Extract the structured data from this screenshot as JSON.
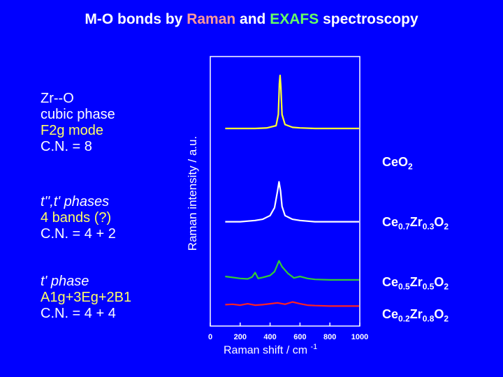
{
  "title": {
    "prefix": "M-O bonds by ",
    "raman": "Raman",
    "middle": " and ",
    "exafs": "EXAFS",
    "suffix": " spectroscopy"
  },
  "blocks": [
    {
      "line1": "Zr--O",
      "line2": "cubic phase",
      "line3": "F2g mode",
      "line4": "C.N. = 8"
    },
    {
      "line1": "t'',t' phases",
      "line2": "4 bands (?)",
      "line3": "C.N. = 4 + 2"
    },
    {
      "line1": "t' phase",
      "line2": "A1g+3Eg+2B1",
      "line3": "C.N. = 4 + 4"
    }
  ],
  "labels": {
    "s1": {
      "base": "Ce",
      "o_base": "O",
      "o_sub": "2"
    },
    "s2": {
      "a": "Ce",
      "a_sub": "0.7",
      "b": "Zr",
      "b_sub": "0.3",
      "c": "O",
      "c_sub": "2"
    },
    "s3": {
      "a": "Ce",
      "a_sub": "0.5",
      "b": "Zr",
      "b_sub": "0.5",
      "c": "O",
      "c_sub": "2"
    },
    "s4": {
      "a": "Ce",
      "a_sub": "0.2",
      "b": "Zr",
      "b_sub": "0.8",
      "c": "O",
      "c_sub": "2"
    }
  },
  "chart_data": {
    "type": "line",
    "xlabel_base": "Raman shift / cm",
    "xlabel_sup": "-1",
    "ylabel": "Raman intensity / a.u.",
    "xlim": [
      0,
      1000
    ],
    "xticks": [
      0,
      200,
      400,
      600,
      800,
      1000
    ],
    "xtick_labels": [
      "0",
      "200",
      "400",
      "600",
      "800",
      "1000"
    ],
    "grid": false,
    "colors": {
      "s1": "#ffff33",
      "s2": "#ffffff",
      "s3": "#33cc33",
      "s4": "#ff2222",
      "frame": "#ffffff"
    },
    "series": [
      {
        "id": "s1",
        "x": [
          100,
          200,
          300,
          380,
          440,
          455,
          462,
          467,
          472,
          480,
          500,
          550,
          600,
          700,
          800,
          1000
        ],
        "y": [
          0.05,
          0.05,
          0.05,
          0.06,
          0.1,
          0.3,
          0.85,
          1.0,
          0.8,
          0.3,
          0.12,
          0.07,
          0.06,
          0.05,
          0.05,
          0.05
        ]
      },
      {
        "id": "s2",
        "x": [
          100,
          200,
          300,
          350,
          400,
          430,
          450,
          460,
          470,
          480,
          500,
          550,
          600,
          700,
          800,
          1000
        ],
        "y": [
          0.05,
          0.05,
          0.07,
          0.09,
          0.15,
          0.28,
          0.55,
          0.7,
          0.55,
          0.3,
          0.15,
          0.09,
          0.07,
          0.05,
          0.05,
          0.05
        ]
      },
      {
        "id": "s3",
        "x": [
          100,
          150,
          200,
          250,
          280,
          300,
          320,
          350,
          400,
          430,
          460,
          480,
          520,
          560,
          600,
          650,
          700,
          800,
          1000
        ],
        "y": [
          0.1,
          0.08,
          0.06,
          0.05,
          0.09,
          0.18,
          0.06,
          0.08,
          0.12,
          0.2,
          0.42,
          0.3,
          0.16,
          0.07,
          0.1,
          0.06,
          0.04,
          0.03,
          0.03
        ]
      },
      {
        "id": "s4",
        "x": [
          100,
          150,
          200,
          250,
          300,
          350,
          400,
          450,
          500,
          550,
          600,
          650,
          700,
          800,
          1000
        ],
        "y": [
          0.04,
          0.05,
          0.03,
          0.06,
          0.03,
          0.04,
          0.06,
          0.08,
          0.05,
          0.1,
          0.06,
          0.03,
          0.02,
          0.01,
          0.01
        ]
      }
    ]
  }
}
